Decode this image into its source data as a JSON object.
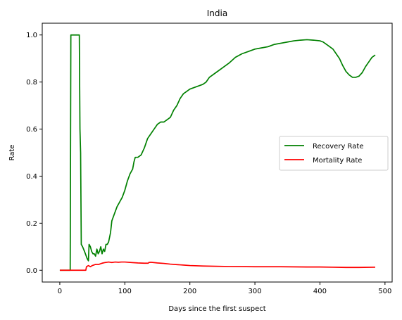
{
  "chart_data": {
    "type": "line",
    "title": "India",
    "xlabel": "Days since the first suspect",
    "ylabel": "Rate",
    "xlim": [
      -27,
      511
    ],
    "ylim": [
      -0.05,
      1.05
    ],
    "xticks": [
      0,
      100,
      200,
      300,
      400,
      500
    ],
    "xtick_labels": [
      "0",
      "100",
      "200",
      "300",
      "400",
      "500"
    ],
    "yticks": [
      0.0,
      0.2,
      0.4,
      0.6,
      0.8,
      1.0
    ],
    "ytick_labels": [
      "0.0",
      "0.2",
      "0.4",
      "0.6",
      "0.8",
      "1.0"
    ],
    "grid": false,
    "legend_position": "center-right",
    "series": [
      {
        "name": "Recovery Rate",
        "color": "#008000",
        "points": [
          [
            0,
            0
          ],
          [
            15,
            0
          ],
          [
            16,
            0
          ],
          [
            17,
            1.0
          ],
          [
            20,
            1.0
          ],
          [
            25,
            1.0
          ],
          [
            30,
            1.0
          ],
          [
            31,
            0.6
          ],
          [
            32,
            0.5
          ],
          [
            33,
            0.11
          ],
          [
            35,
            0.1
          ],
          [
            38,
            0.08
          ],
          [
            42,
            0.05
          ],
          [
            44,
            0.04
          ],
          [
            45,
            0.11
          ],
          [
            47,
            0.1
          ],
          [
            49,
            0.08
          ],
          [
            51,
            0.07
          ],
          [
            53,
            0.07
          ],
          [
            55,
            0.06
          ],
          [
            57,
            0.09
          ],
          [
            59,
            0.07
          ],
          [
            61,
            0.08
          ],
          [
            63,
            0.1
          ],
          [
            65,
            0.07
          ],
          [
            67,
            0.09
          ],
          [
            69,
            0.08
          ],
          [
            71,
            0.11
          ],
          [
            73,
            0.11
          ],
          [
            75,
            0.12
          ],
          [
            78,
            0.16
          ],
          [
            80,
            0.21
          ],
          [
            84,
            0.24
          ],
          [
            88,
            0.27
          ],
          [
            92,
            0.29
          ],
          [
            96,
            0.31
          ],
          [
            100,
            0.34
          ],
          [
            104,
            0.38
          ],
          [
            108,
            0.41
          ],
          [
            112,
            0.43
          ],
          [
            114,
            0.46
          ],
          [
            116,
            0.48
          ],
          [
            120,
            0.48
          ],
          [
            125,
            0.49
          ],
          [
            130,
            0.52
          ],
          [
            135,
            0.56
          ],
          [
            140,
            0.58
          ],
          [
            145,
            0.6
          ],
          [
            150,
            0.62
          ],
          [
            155,
            0.63
          ],
          [
            160,
            0.63
          ],
          [
            165,
            0.64
          ],
          [
            170,
            0.65
          ],
          [
            175,
            0.68
          ],
          [
            180,
            0.7
          ],
          [
            185,
            0.73
          ],
          [
            190,
            0.75
          ],
          [
            195,
            0.76
          ],
          [
            200,
            0.77
          ],
          [
            210,
            0.78
          ],
          [
            220,
            0.79
          ],
          [
            225,
            0.8
          ],
          [
            230,
            0.82
          ],
          [
            240,
            0.84
          ],
          [
            250,
            0.86
          ],
          [
            260,
            0.88
          ],
          [
            270,
            0.905
          ],
          [
            280,
            0.92
          ],
          [
            290,
            0.93
          ],
          [
            300,
            0.94
          ],
          [
            310,
            0.945
          ],
          [
            320,
            0.95
          ],
          [
            330,
            0.96
          ],
          [
            340,
            0.965
          ],
          [
            350,
            0.97
          ],
          [
            360,
            0.975
          ],
          [
            370,
            0.978
          ],
          [
            380,
            0.98
          ],
          [
            390,
            0.978
          ],
          [
            400,
            0.975
          ],
          [
            405,
            0.97
          ],
          [
            410,
            0.96
          ],
          [
            415,
            0.95
          ],
          [
            420,
            0.94
          ],
          [
            425,
            0.92
          ],
          [
            430,
            0.9
          ],
          [
            435,
            0.87
          ],
          [
            440,
            0.845
          ],
          [
            445,
            0.83
          ],
          [
            450,
            0.82
          ],
          [
            455,
            0.82
          ],
          [
            460,
            0.825
          ],
          [
            465,
            0.84
          ],
          [
            470,
            0.865
          ],
          [
            475,
            0.885
          ],
          [
            480,
            0.905
          ],
          [
            485,
            0.915
          ]
        ]
      },
      {
        "name": "Mortality Rate",
        "color": "#ff0000",
        "points": [
          [
            0,
            0
          ],
          [
            20,
            0
          ],
          [
            30,
            0
          ],
          [
            40,
            0
          ],
          [
            41,
            0.015
          ],
          [
            44,
            0.02
          ],
          [
            47,
            0.015
          ],
          [
            50,
            0.02
          ],
          [
            55,
            0.025
          ],
          [
            60,
            0.025
          ],
          [
            65,
            0.03
          ],
          [
            70,
            0.033
          ],
          [
            75,
            0.035
          ],
          [
            80,
            0.033
          ],
          [
            85,
            0.035
          ],
          [
            90,
            0.034
          ],
          [
            95,
            0.035
          ],
          [
            100,
            0.035
          ],
          [
            105,
            0.034
          ],
          [
            110,
            0.033
          ],
          [
            120,
            0.031
          ],
          [
            130,
            0.03
          ],
          [
            136,
            0.03
          ],
          [
            137,
            0.033
          ],
          [
            140,
            0.034
          ],
          [
            150,
            0.031
          ],
          [
            160,
            0.029
          ],
          [
            170,
            0.026
          ],
          [
            180,
            0.024
          ],
          [
            190,
            0.022
          ],
          [
            200,
            0.02
          ],
          [
            220,
            0.018
          ],
          [
            240,
            0.017
          ],
          [
            260,
            0.016
          ],
          [
            300,
            0.015
          ],
          [
            340,
            0.015
          ],
          [
            380,
            0.014
          ],
          [
            400,
            0.014
          ],
          [
            420,
            0.013
          ],
          [
            440,
            0.012
          ],
          [
            460,
            0.012
          ],
          [
            485,
            0.013
          ]
        ]
      }
    ]
  }
}
